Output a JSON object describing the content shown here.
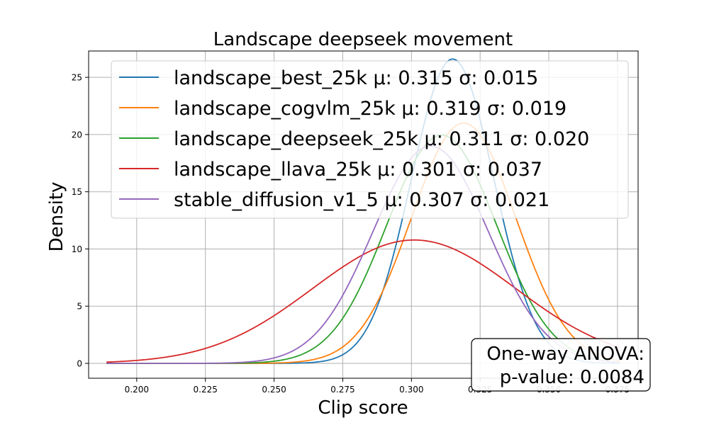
{
  "chart_data": {
    "type": "line",
    "title": "Landscape deepseek movement",
    "xlabel": "Clip score",
    "ylabel": "Density",
    "xlim": [
      0.1825,
      0.3825
    ],
    "ylim": [
      -1.3,
      27.3
    ],
    "x_ticks": [
      "0.200",
      "0.225",
      "0.250",
      "0.275",
      "0.300",
      "0.325",
      "0.350",
      "0.375"
    ],
    "y_ticks": [
      "0",
      "5",
      "10",
      "15",
      "20",
      "25"
    ],
    "grid": true,
    "legend_position": "top",
    "curve_x_range": [
      0.189,
      0.376
    ],
    "series": [
      {
        "name": "landscape_best_25k",
        "stats": "μ: 0.315 σ: 0.015",
        "mu": 0.315,
        "sigma": 0.015,
        "color": "#1f77b4"
      },
      {
        "name": "landscape_cogvlm_25k",
        "stats": "μ: 0.319 σ: 0.019",
        "mu": 0.319,
        "sigma": 0.019,
        "color": "#ff7f0e"
      },
      {
        "name": "landscape_deepseek_25k",
        "stats": "μ: 0.311 σ: 0.020",
        "mu": 0.311,
        "sigma": 0.02,
        "color": "#2ca02c"
      },
      {
        "name": "landscape_llava_25k",
        "stats": "μ: 0.301 σ: 0.037",
        "mu": 0.301,
        "sigma": 0.037,
        "color": "#d62728"
      },
      {
        "name": "stable_diffusion_v1_5",
        "stats": "μ: 0.307 σ: 0.021",
        "mu": 0.307,
        "sigma": 0.021,
        "color": "#9467bd"
      }
    ],
    "annotation": {
      "line1": "One-way ANOVA:",
      "line2": "p-value: 0.0084"
    }
  }
}
